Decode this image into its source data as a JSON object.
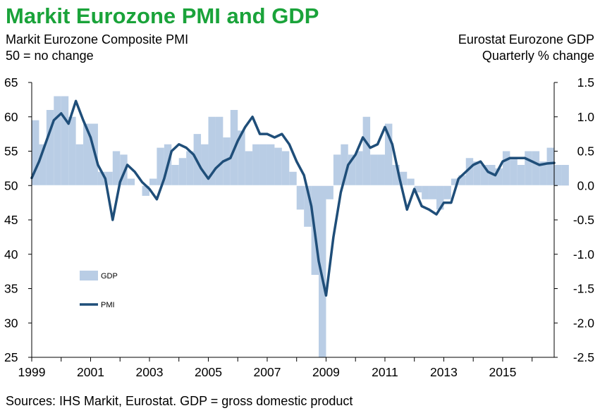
{
  "colors": {
    "title": "#1aa33a",
    "gdp_bar": "#b9cde5",
    "pmi_line": "#1f4e79",
    "axis": "#000000"
  },
  "chart_data": {
    "type": "bar+line",
    "title": "Markit Eurozone PMI and GDP",
    "left_axis": {
      "label_line1": "Markit Eurozone Composite PMI",
      "label_line2": "50 = no change",
      "ylim": [
        25,
        65
      ],
      "ticks": [
        65,
        60,
        55,
        50,
        45,
        40,
        35,
        30,
        25
      ]
    },
    "right_axis": {
      "label_line1": "Eurostat Eurozone GDP",
      "label_line2": "Quarterly % change",
      "ylim": [
        -2.5,
        1.5
      ],
      "ticks": [
        "1.5",
        "1.0",
        "0.5",
        "0.0",
        "-0.5",
        "-1.0",
        "-1.5",
        "-2.0",
        "-2.5"
      ]
    },
    "x_axis": {
      "range": [
        1999,
        2016.75
      ],
      "ticks": [
        "1999",
        "2001",
        "2003",
        "2005",
        "2007",
        "2009",
        "2011",
        "2013",
        "2015"
      ]
    },
    "legend": {
      "gdp": "GDP",
      "pmi": "PMI"
    },
    "source": "Sources: IHS Markit, Eurostat. GDP = gross domestic product",
    "gdp": {
      "start": 1999.0,
      "step": 0.25,
      "values": [
        0.95,
        0.6,
        1.1,
        1.3,
        1.3,
        1.0,
        0.6,
        0.9,
        0.9,
        0.2,
        0.2,
        0.5,
        0.45,
        0.1,
        0.0,
        -0.15,
        0.1,
        0.55,
        0.6,
        0.3,
        0.4,
        0.5,
        0.75,
        0.6,
        1.0,
        1.0,
        0.7,
        1.1,
        0.8,
        0.5,
        0.6,
        0.6,
        0.6,
        0.55,
        0.5,
        0.2,
        -0.35,
        -0.6,
        -1.3,
        -2.5,
        -0.2,
        0.45,
        0.6,
        0.45,
        0.5,
        1.0,
        0.45,
        0.45,
        0.9,
        0.3,
        0.2,
        0.1,
        -0.1,
        -0.2,
        -0.2,
        -0.35,
        -0.2,
        0.1,
        0.15,
        0.4,
        0.35,
        0.3,
        0.3,
        0.25,
        0.5,
        0.4,
        0.3,
        0.5,
        0.5,
        0.35,
        0.55,
        0.3,
        0.3
      ]
    },
    "pmi": {
      "x": [
        1999.0,
        1999.25,
        1999.5,
        1999.75,
        2000.0,
        2000.25,
        2000.5,
        2000.75,
        2001.0,
        2001.25,
        2001.5,
        2001.75,
        2002.0,
        2002.25,
        2002.5,
        2002.75,
        2003.0,
        2003.25,
        2003.5,
        2003.75,
        2004.0,
        2004.25,
        2004.5,
        2004.75,
        2005.0,
        2005.25,
        2005.5,
        2005.75,
        2006.0,
        2006.25,
        2006.5,
        2006.75,
        2007.0,
        2007.25,
        2007.5,
        2007.75,
        2008.0,
        2008.25,
        2008.5,
        2008.75,
        2009.0,
        2009.25,
        2009.5,
        2009.75,
        2010.0,
        2010.25,
        2010.5,
        2010.75,
        2011.0,
        2011.25,
        2011.5,
        2011.75,
        2012.0,
        2012.25,
        2012.5,
        2012.75,
        2013.0,
        2013.25,
        2013.5,
        2013.75,
        2014.0,
        2014.25,
        2014.5,
        2014.75,
        2015.0,
        2015.25,
        2015.5,
        2015.75,
        2016.0,
        2016.25,
        2016.5,
        2016.75
      ],
      "values": [
        51.1,
        53.5,
        56.5,
        59.5,
        60.5,
        59.0,
        62.3,
        59.5,
        57.0,
        53.0,
        51.0,
        45.0,
        50.5,
        53.0,
        52.0,
        50.5,
        49.5,
        48.0,
        51.0,
        55.0,
        56.0,
        55.5,
        54.5,
        52.5,
        51.0,
        52.5,
        53.5,
        54.0,
        56.5,
        58.5,
        60.0,
        57.5,
        57.5,
        57.0,
        57.5,
        56.0,
        53.5,
        51.5,
        47.0,
        39.0,
        34.0,
        42.5,
        49.0,
        53.0,
        54.5,
        57.0,
        55.5,
        56.0,
        58.5,
        56.0,
        51.0,
        46.5,
        49.5,
        47.0,
        46.5,
        45.8,
        47.5,
        47.5,
        51.0,
        52.0,
        53.0,
        53.5,
        52.0,
        51.5,
        53.5,
        54.0,
        54.0,
        54.0,
        53.5,
        53.0,
        53.2,
        53.3
      ]
    }
  }
}
